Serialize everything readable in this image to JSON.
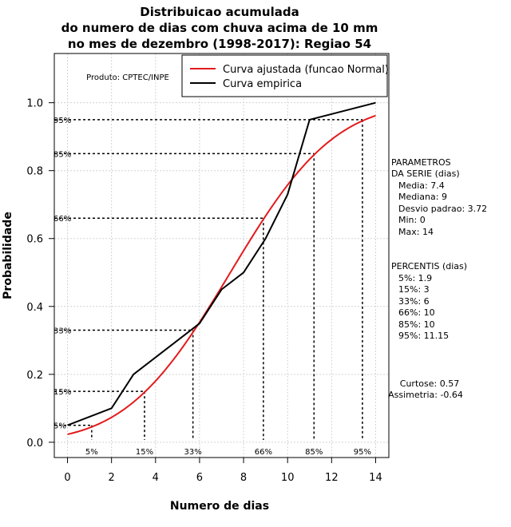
{
  "chart_data": {
    "type": "line",
    "title_lines": [
      "Distribuicao acumulada",
      "do numero de dias com chuva acima de 10 mm",
      "no mes de dezembro (1998-2017): Regiao 54"
    ],
    "xlabel": "Numero de dias",
    "ylabel": "Probabilidade",
    "xlim": [
      -0.6,
      14.6
    ],
    "ylim": [
      -0.045,
      1.145
    ],
    "x_ticks": [
      0,
      2,
      4,
      6,
      8,
      10,
      12,
      14
    ],
    "x_tick_labels": [
      "0",
      "2",
      "4",
      "6",
      "8",
      "10",
      "12",
      "14"
    ],
    "y_ticks": [
      0.0,
      0.2,
      0.4,
      0.6,
      0.8,
      1.0
    ],
    "y_tick_labels": [
      "0.0",
      "0.2",
      "0.4",
      "0.6",
      "0.8",
      "1.0"
    ],
    "grid": true,
    "legend_position": "top-right",
    "product_label": "Produto: CPTEC/INPE",
    "series": [
      {
        "name": "Curva ajustada (funcao Normal)",
        "color": "#e31a1c",
        "kind": "normal_cdf",
        "mean": 7.4,
        "sd": 3.72,
        "x_range": [
          0,
          14
        ]
      },
      {
        "name": "Curva empirica",
        "color": "#000000",
        "kind": "points",
        "x": [
          0,
          2,
          3,
          5,
          6,
          7,
          8,
          9,
          10,
          11,
          14
        ],
        "y": [
          0.05,
          0.1,
          0.2,
          0.3,
          0.35,
          0.45,
          0.5,
          0.6,
          0.73,
          0.95,
          1.0
        ]
      }
    ],
    "percentile_markers": [
      {
        "p": 0.05,
        "x": 1.1,
        "label": "5%"
      },
      {
        "p": 0.15,
        "x": 3.5,
        "label": "15%"
      },
      {
        "p": 0.33,
        "x": 5.7,
        "label": "33%"
      },
      {
        "p": 0.66,
        "x": 8.9,
        "label": "66%"
      },
      {
        "p": 0.85,
        "x": 11.2,
        "label": "85%"
      },
      {
        "p": 0.95,
        "x": 13.4,
        "label": "95%"
      }
    ],
    "side_panel": {
      "params_title": [
        "PARAMETROS",
        "DA SERIE (dias)"
      ],
      "params": [
        "Media: 7.4",
        "Mediana: 9",
        "Desvio padrao: 3.72",
        "Min: 0",
        "Max: 14"
      ],
      "percentis_title": "PERCENTIS (dias)",
      "percentis": [
        "5%: 1.9",
        "15%: 3",
        "33%: 6",
        "66%: 10",
        "85%: 10",
        "95%: 11.15"
      ],
      "curtose": "Curtose: 0.57",
      "assimetria": "Assimetria: -0.64"
    }
  }
}
